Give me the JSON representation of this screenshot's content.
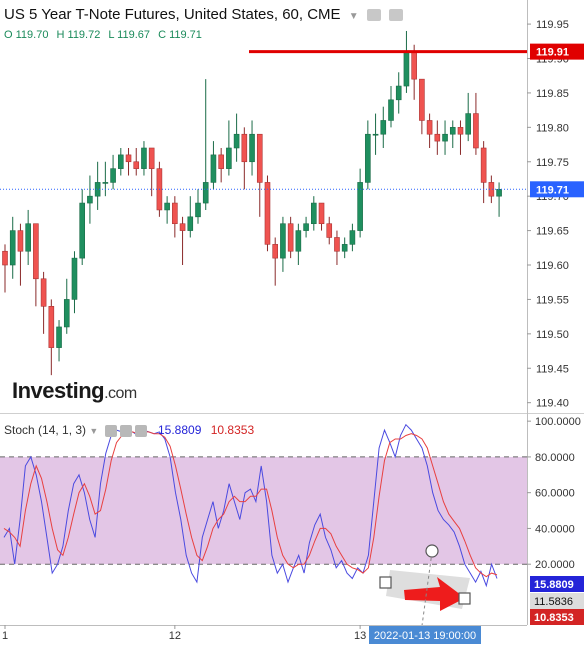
{
  "header": {
    "title": "US 5 Year T-Note Futures, United States, 60, CME",
    "ohlc": {
      "o": "O 119.70",
      "h": "H 119.72",
      "l": "L 119.67",
      "c": "C 119.71"
    }
  },
  "watermark": {
    "text": "Investing",
    "suffix": ".com"
  },
  "colors": {
    "up": "#26a69a",
    "down": "#ef5350",
    "upDark": "#1f8f5f",
    "stoch_k": "#4a4ae0",
    "stoch_d": "#e84040",
    "band_fill": "#e3c6e6",
    "price_marker": "#2962ff",
    "resistance": "#e00000"
  },
  "chart_data": [
    {
      "type": "candlestick",
      "title": "US 5 Year T-Note Futures, United States, 60, CME",
      "y_ticks": [
        119.4,
        119.45,
        119.5,
        119.55,
        119.6,
        119.65,
        119.7,
        119.75,
        119.8,
        119.85,
        119.9,
        119.95
      ],
      "y_tick_labels": [
        "119.40",
        "119.45",
        "119.50",
        "119.55",
        "119.60",
        "119.65",
        "119.70",
        "119.75",
        "119.80",
        "119.85",
        "119.90",
        "119.95"
      ],
      "ylim": [
        119.385,
        119.985
      ],
      "current_price_label": "119.71",
      "current_price": 119.71,
      "resistance_label": "119.91",
      "resistance": 119.91,
      "candles": [
        [
          119.62,
          119.6,
          119.63,
          119.56
        ],
        [
          119.6,
          119.65,
          119.67,
          119.58
        ],
        [
          119.65,
          119.62,
          119.66,
          119.57
        ],
        [
          119.62,
          119.66,
          119.68,
          119.6
        ],
        [
          119.66,
          119.58,
          119.66,
          119.54
        ],
        [
          119.58,
          119.54,
          119.59,
          119.5
        ],
        [
          119.54,
          119.48,
          119.55,
          119.44
        ],
        [
          119.48,
          119.51,
          119.52,
          119.46
        ],
        [
          119.51,
          119.55,
          119.58,
          119.5
        ],
        [
          119.55,
          119.61,
          119.62,
          119.53
        ],
        [
          119.61,
          119.69,
          119.71,
          119.6
        ],
        [
          119.69,
          119.7,
          119.73,
          119.66
        ],
        [
          119.7,
          119.72,
          119.75,
          119.68
        ],
        [
          119.72,
          119.72,
          119.75,
          119.7
        ],
        [
          119.72,
          119.74,
          119.76,
          119.71
        ],
        [
          119.74,
          119.76,
          119.77,
          119.73
        ],
        [
          119.76,
          119.75,
          119.77,
          119.73
        ],
        [
          119.75,
          119.74,
          119.77,
          119.73
        ],
        [
          119.74,
          119.77,
          119.78,
          119.73
        ],
        [
          119.77,
          119.74,
          119.77,
          119.7
        ],
        [
          119.74,
          119.68,
          119.75,
          119.67
        ],
        [
          119.68,
          119.69,
          119.7,
          119.66
        ],
        [
          119.69,
          119.66,
          119.7,
          119.64
        ],
        [
          119.66,
          119.65,
          119.67,
          119.6
        ],
        [
          119.65,
          119.67,
          119.7,
          119.64
        ],
        [
          119.67,
          119.69,
          119.71,
          119.66
        ],
        [
          119.69,
          119.72,
          119.87,
          119.68
        ],
        [
          119.72,
          119.76,
          119.78,
          119.71
        ],
        [
          119.76,
          119.74,
          119.77,
          119.72
        ],
        [
          119.74,
          119.77,
          119.81,
          119.73
        ],
        [
          119.77,
          119.79,
          119.82,
          119.75
        ],
        [
          119.79,
          119.75,
          119.8,
          119.71
        ],
        [
          119.75,
          119.79,
          119.81,
          119.73
        ],
        [
          119.79,
          119.72,
          119.79,
          119.67
        ],
        [
          119.72,
          119.63,
          119.73,
          119.62
        ],
        [
          119.63,
          119.61,
          119.64,
          119.57
        ],
        [
          119.61,
          119.66,
          119.67,
          119.59
        ],
        [
          119.66,
          119.62,
          119.67,
          119.61
        ],
        [
          119.62,
          119.65,
          119.66,
          119.6
        ],
        [
          119.65,
          119.66,
          119.67,
          119.64
        ],
        [
          119.66,
          119.69,
          119.7,
          119.65
        ],
        [
          119.69,
          119.66,
          119.69,
          119.65
        ],
        [
          119.66,
          119.64,
          119.67,
          119.63
        ],
        [
          119.64,
          119.62,
          119.65,
          119.6
        ],
        [
          119.62,
          119.63,
          119.64,
          119.61
        ],
        [
          119.63,
          119.65,
          119.66,
          119.62
        ],
        [
          119.65,
          119.72,
          119.74,
          119.64
        ],
        [
          119.72,
          119.79,
          119.81,
          119.71
        ],
        [
          119.79,
          119.79,
          119.82,
          119.76
        ],
        [
          119.79,
          119.81,
          119.83,
          119.77
        ],
        [
          119.81,
          119.84,
          119.86,
          119.8
        ],
        [
          119.84,
          119.86,
          119.88,
          119.82
        ],
        [
          119.86,
          119.91,
          119.94,
          119.85
        ],
        [
          119.91,
          119.87,
          119.92,
          119.84
        ],
        [
          119.87,
          119.81,
          119.87,
          119.79
        ],
        [
          119.81,
          119.79,
          119.82,
          119.77
        ],
        [
          119.79,
          119.78,
          119.81,
          119.76
        ],
        [
          119.78,
          119.79,
          119.81,
          119.76
        ],
        [
          119.79,
          119.8,
          119.81,
          119.77
        ],
        [
          119.8,
          119.79,
          119.81,
          119.76
        ],
        [
          119.79,
          119.82,
          119.85,
          119.78
        ],
        [
          119.82,
          119.77,
          119.85,
          119.76
        ],
        [
          119.77,
          119.72,
          119.78,
          119.69
        ],
        [
          119.72,
          119.7,
          119.73,
          119.69
        ],
        [
          119.7,
          119.71,
          119.72,
          119.67
        ]
      ]
    },
    {
      "type": "line",
      "title": "Stoch (14, 1, 3)",
      "series": [
        {
          "name": "15.8809",
          "values": [
            35,
            40,
            20,
            45,
            75,
            80,
            70,
            55,
            35,
            15,
            20,
            30,
            50,
            65,
            70,
            60,
            45,
            35,
            65,
            82,
            92,
            95,
            94,
            93,
            94,
            92,
            95,
            94,
            93,
            94,
            90,
            80,
            60,
            45,
            25,
            15,
            10,
            35,
            45,
            55,
            40,
            50,
            65,
            55,
            45,
            60,
            62,
            55,
            75,
            55,
            25,
            15,
            20,
            10,
            18,
            25,
            15,
            32,
            42,
            48,
            35,
            28,
            18,
            22,
            15,
            12,
            18,
            15,
            25,
            55,
            85,
            95,
            88,
            80,
            92,
            98,
            95,
            90,
            85,
            75,
            60,
            50,
            45,
            42,
            38,
            30,
            20,
            15,
            10,
            16,
            8,
            20,
            12
          ]
        },
        {
          "name": "10.8353",
          "values": [
            40,
            38,
            35,
            30,
            50,
            65,
            75,
            68,
            55,
            40,
            28,
            25,
            35,
            48,
            60,
            65,
            58,
            48,
            50,
            62,
            78,
            88,
            92,
            93,
            94,
            93,
            94,
            94,
            93,
            93,
            91,
            86,
            75,
            62,
            48,
            35,
            25,
            22,
            30,
            40,
            45,
            48,
            55,
            58,
            55,
            55,
            58,
            58,
            62,
            62,
            50,
            35,
            25,
            20,
            18,
            20,
            20,
            25,
            33,
            40,
            40,
            37,
            30,
            25,
            20,
            18,
            17,
            15,
            18,
            35,
            58,
            78,
            88,
            90,
            90,
            92,
            93,
            92,
            90,
            85,
            75,
            65,
            55,
            48,
            44,
            40,
            33,
            25,
            18,
            15,
            13,
            15,
            14
          ]
        }
      ],
      "y_ticks": [
        20,
        40,
        60,
        80,
        100
      ],
      "y_tick_labels": [
        "20.0000",
        "40.0000",
        "60.0000",
        "80.0000",
        "100.0000"
      ],
      "ylim": [
        -14,
        104
      ],
      "band": [
        20,
        80
      ],
      "k_label": "15.8809",
      "d_label": "10.8353",
      "extra_label": "11.5836"
    }
  ],
  "x_axis": {
    "labels": [
      {
        "text": "1",
        "bar": 0
      },
      {
        "text": "12",
        "bar": 22
      },
      {
        "text": "13",
        "bar": 46
      }
    ],
    "crosshair_label": "2022-01-13 19:00:00",
    "crosshair_bar": 59
  }
}
